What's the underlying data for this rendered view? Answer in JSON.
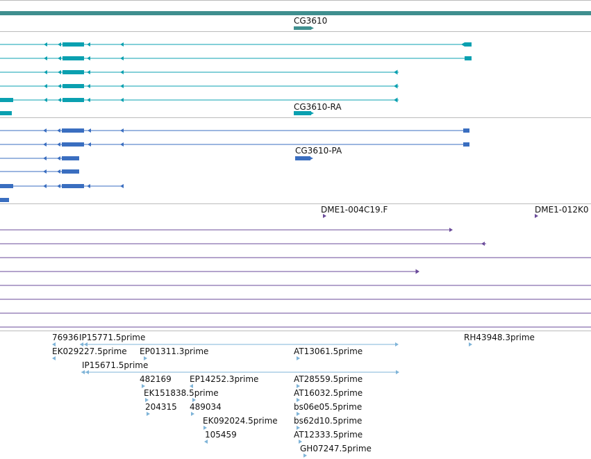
{
  "colors": {
    "gene_bar": "#3f8f8f",
    "gene_label_bar": "#3f8f8f",
    "cdna_transcript": "#0aa0b0",
    "protein_transcript": "#3a6ec0",
    "clone": "#6a4a9a",
    "est": "#7fb4d8",
    "separator": "#bbbbbb"
  },
  "tracks": {
    "gene": {
      "label": "CG3610"
    },
    "mrna": {
      "label": "CG3610-RA"
    },
    "protein": {
      "label": "CG3610-PA"
    },
    "clones": {
      "labels": [
        "DME1-004C19.F",
        "DME1-012K0"
      ]
    },
    "ests": {
      "labels": [
        "76936",
        "IP15771.5prime",
        "RH43948.3prime",
        "EK029227.5prime",
        "EP01311.3prime",
        "AT13061.5prime",
        "IP15671.5prime",
        "482169",
        "EP14252.3prime",
        "AT28559.5prime",
        "EK151838.5prime",
        "AT16032.5prime",
        "204315",
        "489034",
        "bs06e05.5prime",
        "EK092024.5prime",
        "bs62d10.5prime",
        "105459",
        "AT12333.5prime",
        "GH07247.5prime"
      ]
    }
  }
}
